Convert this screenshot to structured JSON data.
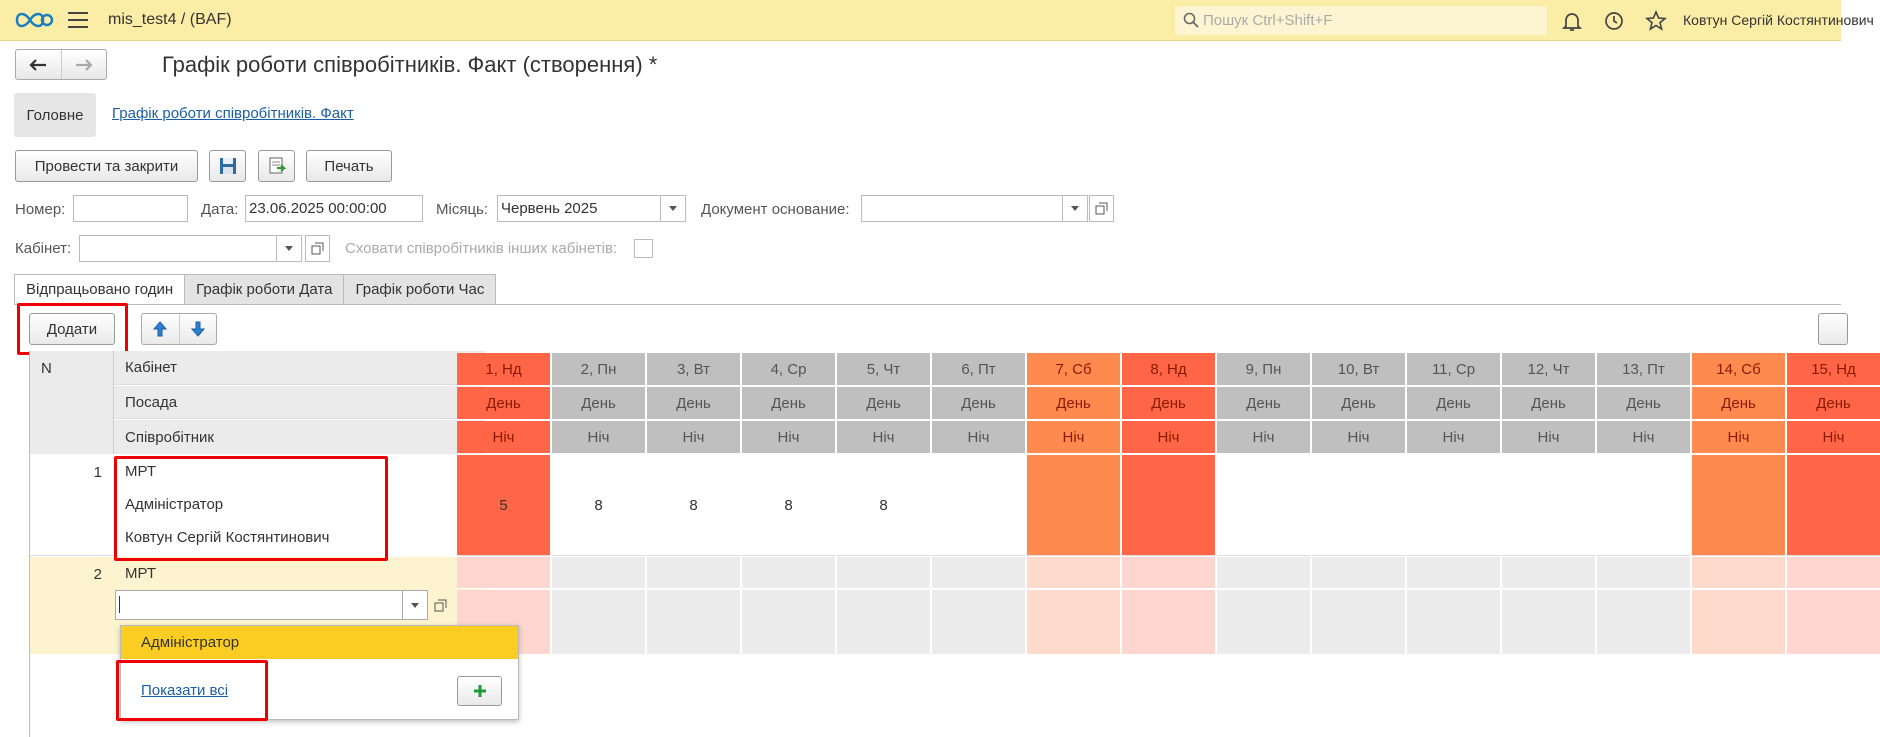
{
  "app": {
    "title": "mis_test4 /  (BAF)",
    "search_placeholder": "Пошук Ctrl+Shift+F",
    "user": "Ковтун Сергій Костянтинович"
  },
  "document": {
    "title": "Графік роботи співробітників. Факт (створення) *",
    "main_tab": "Головне",
    "nav_link": "Графік роботи співробітників. Факт",
    "buttons": {
      "post_close": "Провести та закрити",
      "print": "Печать",
      "add": "Додати"
    },
    "fields": {
      "number_label": "Номер:",
      "number_value": "",
      "date_label": "Дата:",
      "date_value": "23.06.2025 00:00:00",
      "month_label": "Місяць:",
      "month_value": "Червень 2025",
      "basis_label": "Документ основание:",
      "basis_value": "",
      "cabinet_label": "Кабінет:",
      "cabinet_value": "",
      "hide_label": "Сховати співробітників інших кабінетів:"
    },
    "tabs": [
      "Відпрацьовано годин",
      "Графік роботи Дата",
      "Графік роботи Час"
    ]
  },
  "grid": {
    "headers": {
      "n": "N",
      "cabinet": "Кабінет",
      "position": "Посада",
      "employee": "Співробітник",
      "day": "День",
      "night": "Ніч"
    },
    "days": [
      {
        "label": "1, Нд",
        "type": "holiday"
      },
      {
        "label": "2, Пн",
        "type": "work"
      },
      {
        "label": "3, Вт",
        "type": "work"
      },
      {
        "label": "4, Ср",
        "type": "work"
      },
      {
        "label": "5, Чт",
        "type": "work"
      },
      {
        "label": "6, Пт",
        "type": "work"
      },
      {
        "label": "7, Сб",
        "type": "saturday"
      },
      {
        "label": "8, Нд",
        "type": "holiday"
      },
      {
        "label": "9, Пн",
        "type": "work"
      },
      {
        "label": "10, Вт",
        "type": "work"
      },
      {
        "label": "11, Ср",
        "type": "work"
      },
      {
        "label": "12, Чт",
        "type": "work"
      },
      {
        "label": "13, Пт",
        "type": "work"
      },
      {
        "label": "14, Сб",
        "type": "saturday"
      },
      {
        "label": "15, Нд",
        "type": "holiday"
      }
    ],
    "rows": [
      {
        "n": "1",
        "cabinet": "МРТ",
        "position": "Адміністратор",
        "employee": "Ковтун Сергій Костянтинович",
        "values": [
          "5",
          "8",
          "8",
          "8",
          "8",
          "",
          "",
          "",
          "",
          "",
          "",
          "",
          "",
          "",
          ""
        ]
      },
      {
        "n": "2",
        "cabinet": "МРТ",
        "position": "",
        "employee": "",
        "values": [
          "",
          "",
          "",
          "",
          "",
          "",
          "",
          "",
          "",
          "",
          "",
          "",
          "",
          "",
          ""
        ]
      }
    ]
  },
  "dropdown": {
    "items": [
      "Адміністратор"
    ],
    "show_all": "Показати всі"
  },
  "colors": {
    "topbar": "#fbeda6",
    "holiday": "#ff6647",
    "saturday": "#ff8a50",
    "work": "#bfbfbf",
    "highlight": "#fbcd22",
    "link": "#1b5fa8"
  }
}
